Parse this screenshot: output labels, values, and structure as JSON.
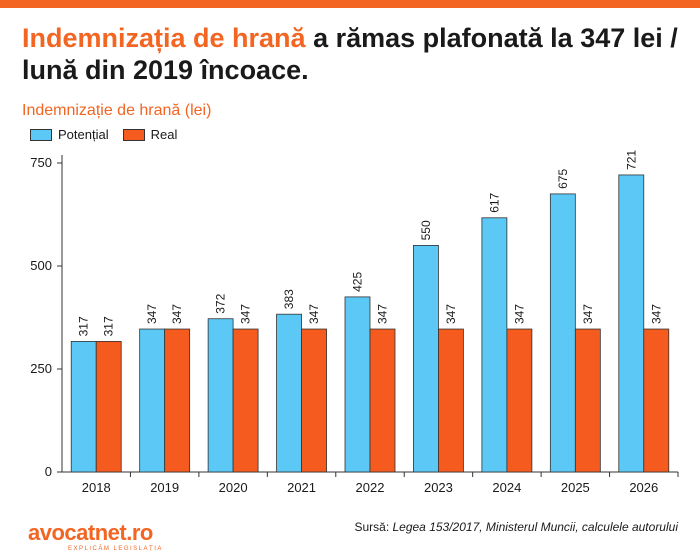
{
  "headline": {
    "accent": "Indemnizația de hrană",
    "rest": " a rămas plafonată la 347 lei / lună din 2019 încoace."
  },
  "colors": {
    "brand_orange": "#f26522",
    "potential_blue": "#5bc8f5",
    "real_orange": "#f55a1f"
  },
  "chart_data": {
    "type": "bar",
    "title": "Indemnizație de hrană (lei)",
    "categories": [
      "2018",
      "2019",
      "2020",
      "2021",
      "2022",
      "2023",
      "2024",
      "2025",
      "2026"
    ],
    "series": [
      {
        "name": "Potențial",
        "color": "#5bc8f5",
        "values": [
          317,
          347,
          372,
          383,
          425,
          550,
          617,
          675,
          721
        ]
      },
      {
        "name": "Real",
        "color": "#f55a1f",
        "values": [
          317,
          347,
          347,
          347,
          347,
          347,
          347,
          347,
          347
        ]
      }
    ],
    "yticks": [
      0,
      250,
      500,
      750
    ],
    "ylim": [
      0,
      750
    ],
    "legend_position": "top-left",
    "grid": false,
    "data_labels": true
  },
  "footer": {
    "logo": "avocatnet.ro",
    "tagline": "EXPLICĂM LEGISLAȚIA",
    "source_label": "Sursă: ",
    "source_text": "Legea 153/2017, Ministerul Muncii, calculele autorului"
  }
}
